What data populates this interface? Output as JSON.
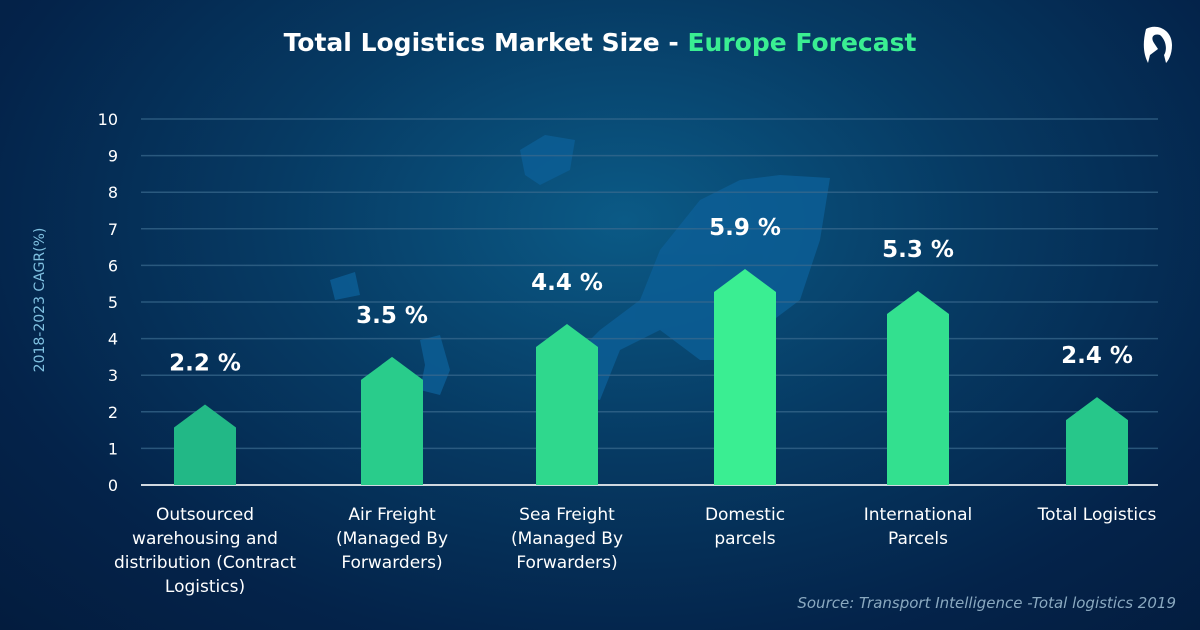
{
  "chart_data": {
    "type": "bar",
    "title": "Total Logistics Market Size - ",
    "title_highlight": "Europe Forecast",
    "ylabel": "2018-2023 CAGR(%)",
    "xlabel": "",
    "ylim": [
      0,
      10
    ],
    "yticks": [
      "0",
      "1",
      "2",
      "3",
      "4",
      "5",
      "6",
      "7",
      "8",
      "9",
      "10"
    ],
    "grid": true,
    "categories": [
      [
        "Outsourced",
        "warehousing and",
        "distribution (Contract",
        "Logistics)"
      ],
      [
        "Air Freight",
        "(Managed By",
        "Forwarders)"
      ],
      [
        "Sea Freight",
        "(Managed By",
        "Forwarders)"
      ],
      [
        "Domestic",
        "parcels"
      ],
      [
        "International",
        "Parcels"
      ],
      [
        "Total Logistics"
      ]
    ],
    "values": [
      2.2,
      3.5,
      4.4,
      5.9,
      5.3,
      2.4
    ],
    "data_labels": [
      "2.2 %",
      "3.5 %",
      "4.4 %",
      "5.9 %",
      "5.3 %",
      "2.4 %"
    ],
    "bar_colors": [
      "#22b886",
      "#29cc8b",
      "#2fd88d",
      "#3aee92",
      "#33e08f",
      "#27c78a"
    ]
  },
  "source": "Source: Transport Intelligence -Total logistics 2019",
  "colors": {
    "accent": "#3aee92",
    "background": "#04234a"
  }
}
